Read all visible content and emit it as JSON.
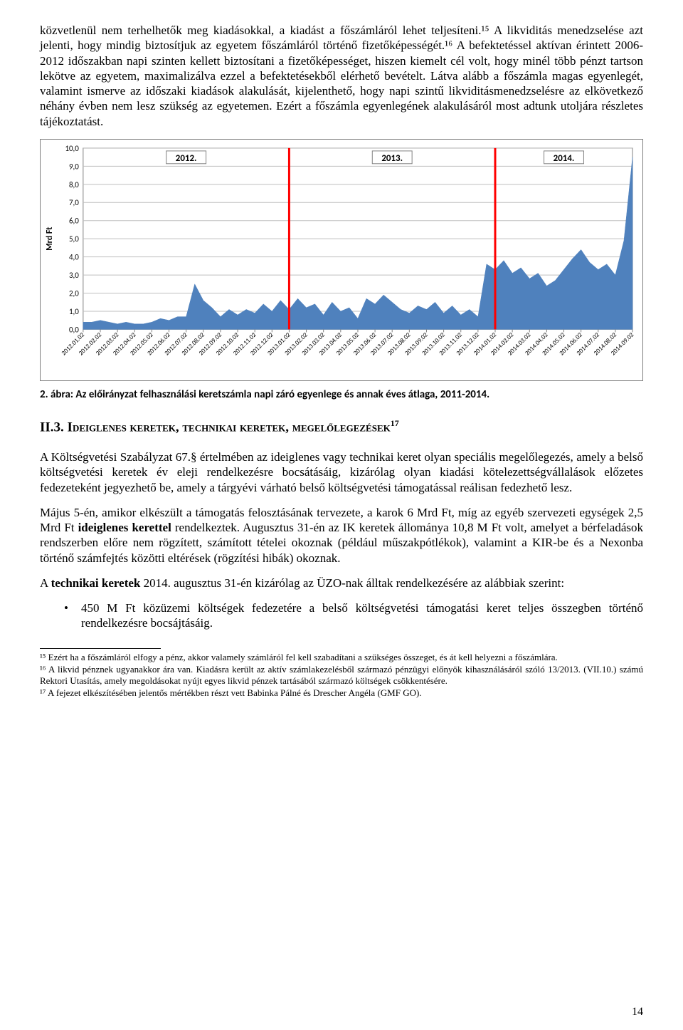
{
  "paragraphs": {
    "p1": "közvetlenül nem terhelhetők meg kiadásokkal, a kiadást a főszámláról lehet teljesíteni.¹⁵ A likviditás menedzselése azt jelenti, hogy mindig biztosítjuk az egyetem főszámláról történő fizetőképességét.¹⁶ A befektetéssel aktívan érintett 2006-2012 időszakban napi szinten kellett biztosítani a fizetőképességet, hiszen kiemelt cél volt, hogy minél több pénzt tartson lekötve az egyetem, maximalizálva ezzel a befektetésekből elérhető bevételt. Látva alább a főszámla magas egyenlegét, valamint ismerve az időszaki kiadások alakulását, kijelenthető, hogy napi szintű likviditásmenedzselésre az elkövetkező néhány évben nem lesz szükség az egyetemen. Ezért a főszámla egyenlegének alakulásáról most adtunk utoljára részletes tájékoztatást.",
    "p2": "A Költségvetési Szabályzat 67.§ értelmében az ideiglenes vagy technikai keret olyan speciális megelőlegezés, amely a belső költségvetési keretek év eleji rendelkezésre bocsátásáig, kizárólag olyan kiadási kötelezettségvállalások előzetes fedezeteként jegyezhető be, amely a tárgyévi várható belső költségvetési támogatással reálisan fedezhető lesz.",
    "p3_a": "Május 5-én, amikor elkészült a támogatás felosztásának tervezete, a karok 6 Mrd Ft, míg az egyéb szervezeti egységek 2,5 Mrd Ft ",
    "p3_bold": "ideiglenes kerettel",
    "p3_b": " rendelkeztek. Augusztus 31-én az IK keretek állománya 10,8 M Ft volt, amelyet a bérfeladások rendszerben előre nem rögzített, számított tételei okoznak (például műszakpótlékok), valamint a KIR-be és a Nexonba történő számfejtés közötti eltérések (rögzítési hibák) okoznak.",
    "p4_a": "A ",
    "p4_bold": "technikai keretek",
    "p4_b": " 2014. augusztus 31-én kizárólag az ÜZO-nak álltak rendelkezésére az alábbiak szerint:",
    "bullet1": "450 M Ft közüzemi költségek fedezetére a belső költségvetési támogatási keret teljes összegben történő rendelkezésre bocsájtásáig."
  },
  "chart": {
    "y_label": "Mrd Ft",
    "y_label_fontsize": 12,
    "y_label_color": "#000000",
    "year_labels": [
      "2012.",
      "2013.",
      "2014."
    ],
    "year_label_fontsize": 13,
    "year_label_color": "#000000",
    "y_ticks": [
      "10,0",
      "9,0",
      "8,0",
      "7,0",
      "6,0",
      "5,0",
      "4,0",
      "3,0",
      "2,0",
      "1,0",
      "0,0"
    ],
    "y_min": 0,
    "y_max": 10,
    "tick_fontsize": 11,
    "x_labels": [
      "2012.01.02",
      "2012.02.02",
      "2012.03.02",
      "2012.04.02",
      "2012.05.02",
      "2012.06.02",
      "2012.07.02",
      "2012.08.02",
      "2012.09.02",
      "2012.10.02",
      "2012.11.02",
      "2012.12.02",
      "2013.01.02",
      "2013.02.02",
      "2013.03.02",
      "2013.04.02",
      "2013.05.02",
      "2013.06.02",
      "2013.07.02",
      "2013.08.02",
      "2013.09.02",
      "2013.10.02",
      "2013.11.02",
      "2013.12.02",
      "2014.01.02",
      "2014.02.02",
      "2014.03.02",
      "2014.04.02",
      "2014.05.02",
      "2014.06.02",
      "2014.07.02",
      "2014.08.02",
      "2014.09.02"
    ],
    "x_label_fontsize": 9,
    "x_divider_positions": [
      12,
      24
    ],
    "divider_color": "#ff0000",
    "divider_width": 3,
    "series": {
      "points": [
        0.4,
        0.4,
        0.5,
        0.4,
        0.3,
        0.4,
        0.3,
        0.3,
        0.4,
        0.6,
        0.5,
        0.7,
        0.7,
        2.5,
        1.6,
        1.2,
        0.7,
        1.1,
        0.8,
        1.1,
        0.9,
        1.4,
        1.0,
        1.6,
        1.1,
        1.7,
        1.2,
        1.4,
        0.8,
        1.5,
        1.0,
        1.2,
        0.6,
        1.7,
        1.4,
        1.9,
        1.5,
        1.1,
        0.9,
        1.3,
        1.1,
        1.5,
        0.9,
        1.3,
        0.8,
        1.1,
        0.7,
        3.6,
        3.3,
        3.8,
        3.1,
        3.4,
        2.8,
        3.1,
        2.4,
        2.7,
        3.3,
        3.9,
        4.4,
        3.7,
        3.3,
        3.6,
        3.0,
        4.9,
        9.5
      ],
      "fill_color": "#4f81bd",
      "stroke_color": "#4f81bd",
      "opacity": 1.0
    },
    "background": "#ffffff",
    "grid_color": "#bfbfbf",
    "grid_width": 1,
    "axis_color": "#808080"
  },
  "caption": "2. ábra: Az előirányzat felhasználási keretszámla napi záró egyenlege és annak éves átlaga, 2011-2014.",
  "heading": {
    "num": "II.3. ",
    "title": "Ideiglenes keretek, technikai keretek, megelőlegezések",
    "sup": "17"
  },
  "footnotes": {
    "f15": "¹⁵ Ezért ha a főszámláról elfogy a pénz, akkor valamely számláról fel kell szabadítani a szükséges összeget, és át kell helyezni a főszámlára.",
    "f16": "¹⁶ A likvid pénznek ugyanakkor ára van. Kiadásra került az aktív számlakezelésből származó pénzügyi előnyök kihasználásáról szóló 13/2013. (VII.10.) számú Rektori Utasítás, amely megoldásokat nyújt egyes likvid pénzek tartásából származó költségek csökkentésére.",
    "f17": "¹⁷ A fejezet elkészítésében jelentős mértékben részt vett Babinka Pálné és Drescher Angéla (GMF GO)."
  },
  "page_number": "14"
}
